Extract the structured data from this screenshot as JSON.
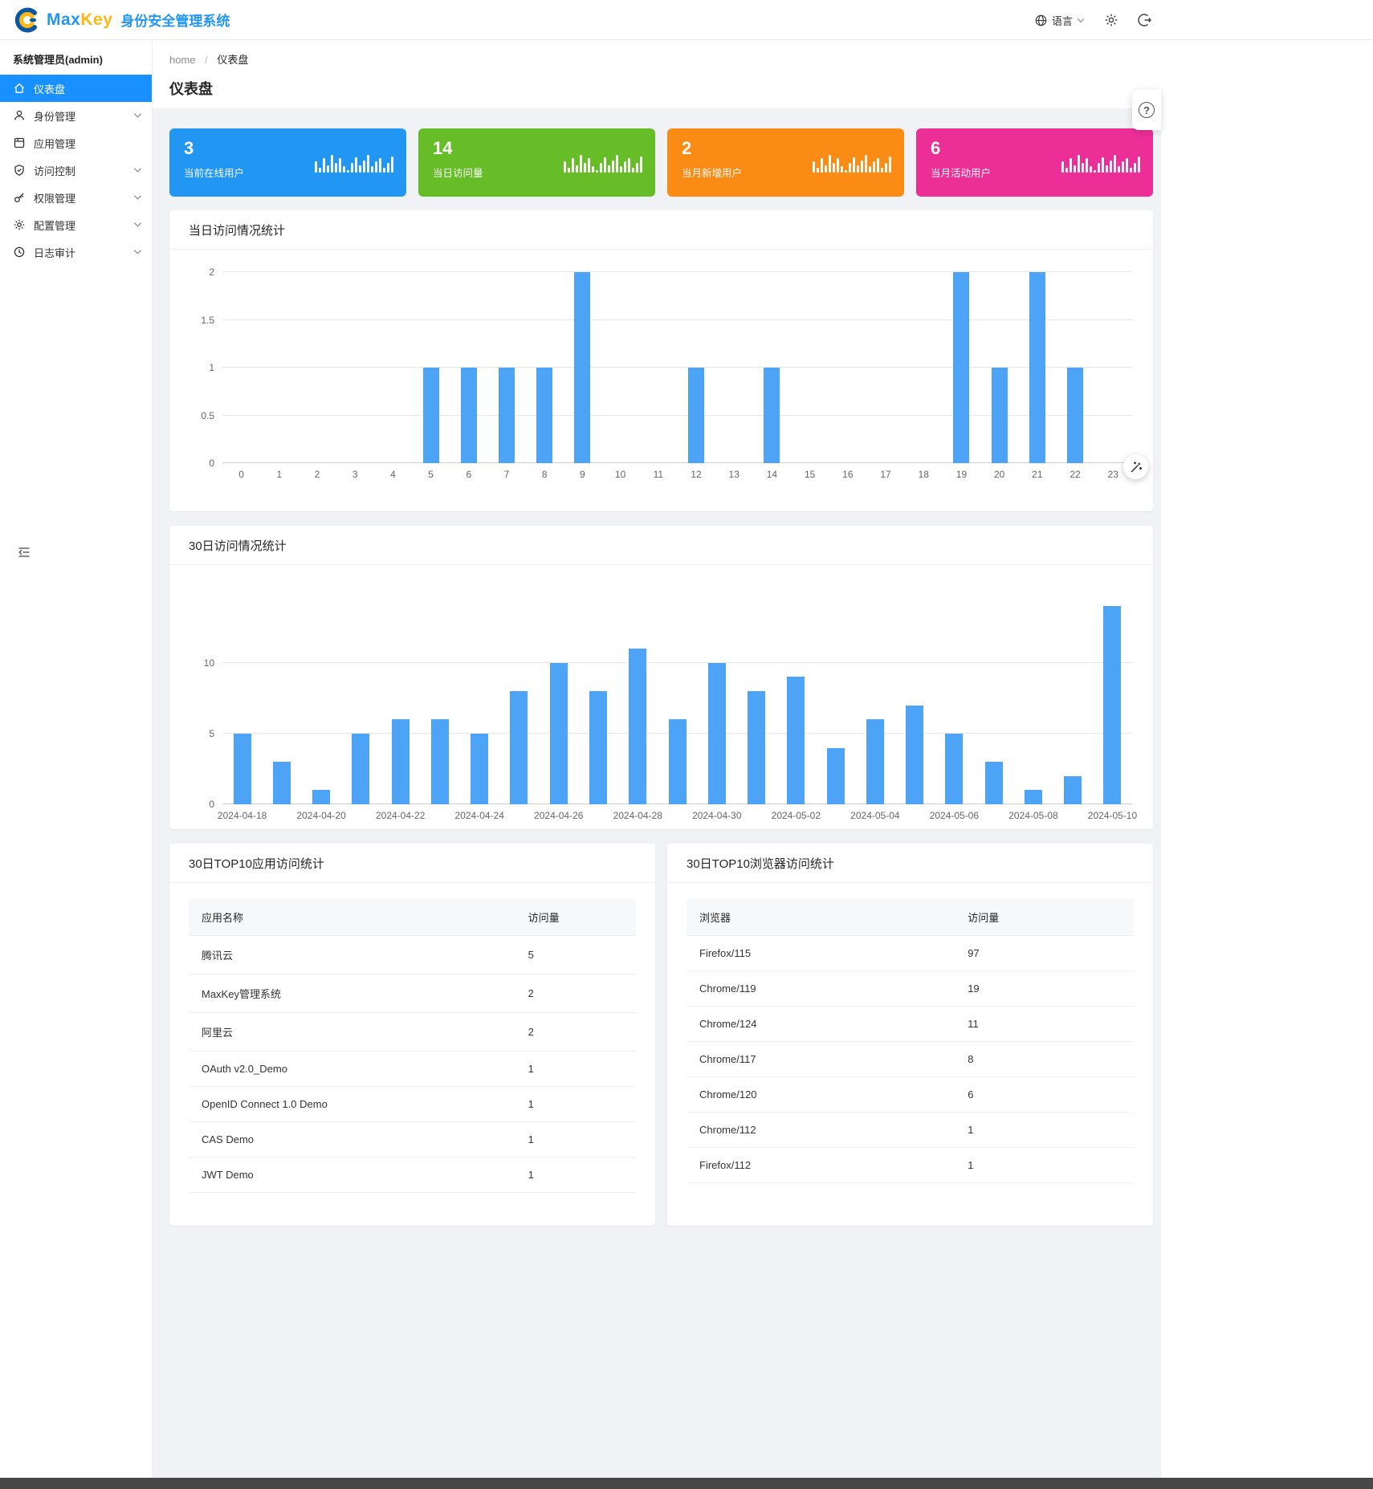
{
  "header": {
    "brand_max": "Max",
    "brand_key": "Key",
    "brand_subtitle": "身份安全管理系统",
    "language_label": "语言"
  },
  "sidebar": {
    "user": "系统管理员(admin)",
    "items": [
      {
        "label": "仪表盘",
        "icon": "home",
        "active": true,
        "chevron": false
      },
      {
        "label": "身份管理",
        "icon": "person",
        "active": false,
        "chevron": true
      },
      {
        "label": "应用管理",
        "icon": "apps",
        "active": false,
        "chevron": false
      },
      {
        "label": "访问控制",
        "icon": "shield",
        "active": false,
        "chevron": true
      },
      {
        "label": "权限管理",
        "icon": "key",
        "active": false,
        "chevron": true
      },
      {
        "label": "配置管理",
        "icon": "gear",
        "active": false,
        "chevron": true
      },
      {
        "label": "日志审计",
        "icon": "clock",
        "active": false,
        "chevron": true
      }
    ]
  },
  "breadcrumb": {
    "home": "home",
    "separator": "/",
    "current": "仪表盘"
  },
  "page": {
    "title": "仪表盘"
  },
  "stat_cards": [
    {
      "value": "3",
      "label": "当前在线用户",
      "color": "#2196f3",
      "icon": "bar-chart"
    },
    {
      "value": "14",
      "label": "当日访问量",
      "color": "#66bd27",
      "icon": "bar-chart"
    },
    {
      "value": "2",
      "label": "当月新增用户",
      "color": "#fa8c16",
      "icon": "bar-chart"
    },
    {
      "value": "6",
      "label": "当月活动用户",
      "color": "#eb2f96",
      "icon": "bar-chart"
    }
  ],
  "chart_data": [
    {
      "id": "hourly",
      "type": "bar",
      "title": "当日访问情况统计",
      "categories": [
        "0",
        "1",
        "2",
        "3",
        "4",
        "5",
        "6",
        "7",
        "8",
        "9",
        "10",
        "11",
        "12",
        "13",
        "14",
        "15",
        "16",
        "17",
        "18",
        "19",
        "20",
        "21",
        "22",
        "23"
      ],
      "values": [
        0,
        0,
        0,
        0,
        0,
        1,
        1,
        1,
        1,
        2,
        0,
        0,
        1,
        0,
        1,
        0,
        0,
        0,
        0,
        2,
        1,
        2,
        1,
        0
      ],
      "xlabel": "",
      "ylabel": "",
      "ylim": [
        0,
        2
      ],
      "yticks": [
        0,
        0.5,
        1,
        1.5,
        2
      ],
      "label_every": 1,
      "bar_color": "#4da3f5",
      "grid": true,
      "legend": "none"
    },
    {
      "id": "daily",
      "type": "bar",
      "title": "30日访问情况统计",
      "categories": [
        "2024-04-18",
        "2024-04-19",
        "2024-04-20",
        "2024-04-21",
        "2024-04-22",
        "2024-04-23",
        "2024-04-24",
        "2024-04-25",
        "2024-04-26",
        "2024-04-27",
        "2024-04-28",
        "2024-04-29",
        "2024-04-30",
        "2024-05-01",
        "2024-05-02",
        "2024-05-03",
        "2024-05-04",
        "2024-05-05",
        "2024-05-06",
        "2024-05-07",
        "2024-05-08",
        "2024-05-09",
        "2024-05-10"
      ],
      "values": [
        5,
        3,
        1,
        5,
        6,
        6,
        5,
        8,
        10,
        8,
        11,
        6,
        10,
        8,
        9,
        4,
        6,
        7,
        5,
        3,
        1,
        2,
        14
      ],
      "xlabel": "",
      "ylabel": "",
      "ylim": [
        0,
        16
      ],
      "yticks": [
        0,
        5,
        10
      ],
      "label_every": 2,
      "bar_color": "#4da3f5",
      "grid": true,
      "legend": "none"
    }
  ],
  "tables": {
    "apps": {
      "title": "30日TOP10应用访问统计",
      "headers": [
        "应用名称",
        "访问量"
      ],
      "rows": [
        [
          "腾讯云",
          "5"
        ],
        [
          "MaxKey管理系统",
          "2"
        ],
        [
          "阿里云",
          "2"
        ],
        [
          "OAuth v2.0_Demo",
          "1"
        ],
        [
          "OpenID Connect 1.0 Demo",
          "1"
        ],
        [
          "CAS Demo",
          "1"
        ],
        [
          "JWT Demo",
          "1"
        ]
      ]
    },
    "browsers": {
      "title": "30日TOP10浏览器访问统计",
      "headers": [
        "浏览器",
        "访问量"
      ],
      "rows": [
        [
          "Firefox/115",
          "97"
        ],
        [
          "Chrome/119",
          "19"
        ],
        [
          "Chrome/124",
          "11"
        ],
        [
          "Chrome/117",
          "8"
        ],
        [
          "Chrome/120",
          "6"
        ],
        [
          "Chrome/112",
          "1"
        ],
        [
          "Firefox/112",
          "1"
        ]
      ]
    }
  },
  "icons": {
    "help": "question-circle-icon",
    "assist": "magic-wand-icon",
    "collapse": "menu-fold-icon"
  }
}
